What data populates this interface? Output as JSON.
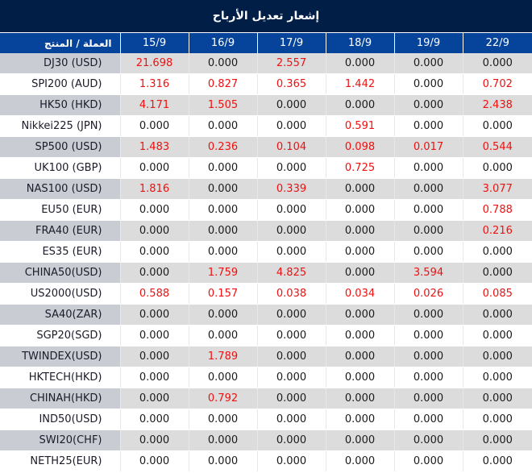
{
  "title": "إشعار تعديل الأرباح",
  "header": {
    "label_column": "العملة / المنتج",
    "dates": [
      "15/9",
      "16/9",
      "17/9",
      "18/9",
      "19/9",
      "22/9"
    ]
  },
  "colors": {
    "title_bg": "#011e47",
    "header_bg": "#06449b",
    "positive_value": "#ee1111",
    "zero_value": "#1a1a1a",
    "row_stripe": "#dcdcdc",
    "label_stripe": "#c9ccd3"
  },
  "rows": [
    {
      "product": "DJ30 (USD)",
      "values": [
        "21.698",
        "0.000",
        "2.557",
        "0.000",
        "0.000",
        "0.000"
      ]
    },
    {
      "product": "SPI200 (AUD)",
      "values": [
        "1.316",
        "0.827",
        "0.365",
        "1.442",
        "0.000",
        "0.702"
      ]
    },
    {
      "product": "HK50 (HKD)",
      "values": [
        "4.171",
        "1.505",
        "0.000",
        "0.000",
        "0.000",
        "2.438"
      ]
    },
    {
      "product": "Nikkei225 (JPN)",
      "values": [
        "0.000",
        "0.000",
        "0.000",
        "0.591",
        "0.000",
        "0.000"
      ]
    },
    {
      "product": "SP500 (USD)",
      "values": [
        "1.483",
        "0.236",
        "0.104",
        "0.098",
        "0.017",
        "0.544"
      ]
    },
    {
      "product": "UK100 (GBP)",
      "values": [
        "0.000",
        "0.000",
        "0.000",
        "0.725",
        "0.000",
        "0.000"
      ]
    },
    {
      "product": "NAS100 (USD)",
      "values": [
        "1.816",
        "0.000",
        "0.339",
        "0.000",
        "0.000",
        "3.077"
      ]
    },
    {
      "product": "EU50 (EUR)",
      "values": [
        "0.000",
        "0.000",
        "0.000",
        "0.000",
        "0.000",
        "0.788"
      ]
    },
    {
      "product": "FRA40 (EUR)",
      "values": [
        "0.000",
        "0.000",
        "0.000",
        "0.000",
        "0.000",
        "0.216"
      ]
    },
    {
      "product": "ES35 (EUR)",
      "values": [
        "0.000",
        "0.000",
        "0.000",
        "0.000",
        "0.000",
        "0.000"
      ]
    },
    {
      "product": "CHINA50(USD)",
      "values": [
        "0.000",
        "1.759",
        "4.825",
        "0.000",
        "3.594",
        "0.000"
      ]
    },
    {
      "product": "US2000(USD)",
      "values": [
        "0.588",
        "0.157",
        "0.038",
        "0.034",
        "0.026",
        "0.085"
      ]
    },
    {
      "product": "SA40(ZAR)",
      "values": [
        "0.000",
        "0.000",
        "0.000",
        "0.000",
        "0.000",
        "0.000"
      ]
    },
    {
      "product": "SGP20(SGD)",
      "values": [
        "0.000",
        "0.000",
        "0.000",
        "0.000",
        "0.000",
        "0.000"
      ]
    },
    {
      "product": "TWINDEX(USD)",
      "values": [
        "0.000",
        "1.789",
        "0.000",
        "0.000",
        "0.000",
        "0.000"
      ]
    },
    {
      "product": "HKTECH(HKD)",
      "values": [
        "0.000",
        "0.000",
        "0.000",
        "0.000",
        "0.000",
        "0.000"
      ]
    },
    {
      "product": "CHINAH(HKD)",
      "values": [
        "0.000",
        "0.792",
        "0.000",
        "0.000",
        "0.000",
        "0.000"
      ]
    },
    {
      "product": "IND50(USD)",
      "values": [
        "0.000",
        "0.000",
        "0.000",
        "0.000",
        "0.000",
        "0.000"
      ]
    },
    {
      "product": "SWI20(CHF)",
      "values": [
        "0.000",
        "0.000",
        "0.000",
        "0.000",
        "0.000",
        "0.000"
      ]
    },
    {
      "product": "NETH25(EUR)",
      "values": [
        "0.000",
        "0.000",
        "0.000",
        "0.000",
        "0.000",
        "0.000"
      ]
    }
  ]
}
